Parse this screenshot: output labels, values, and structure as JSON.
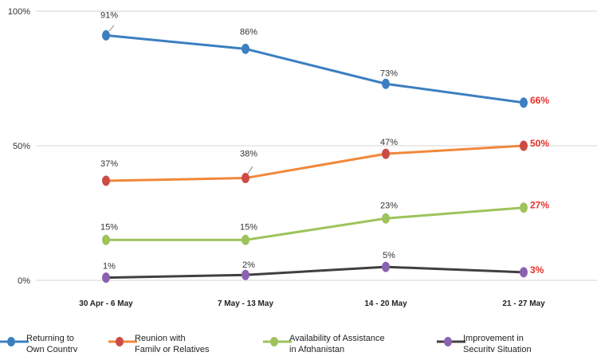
{
  "chart_data": {
    "type": "line",
    "categories": [
      "30 Apr - 6 May",
      "7 May - 13 May",
      "14 - 20 May",
      "21 - 27 May"
    ],
    "ylim": [
      0,
      100
    ],
    "yticks": [
      0,
      50,
      100
    ],
    "ytick_labels": [
      "0%",
      "50%",
      "100%"
    ],
    "grid": true,
    "legend_position": "bottom",
    "last_label_color": "#e8302a",
    "series": [
      {
        "name": "Returning to Own Country",
        "legend_lines": [
          "Returning to",
          "Own Country"
        ],
        "color": "#3c7fc1",
        "marker_color": "#3c7fc1",
        "values": [
          91,
          86,
          73,
          66
        ],
        "labels": [
          "91%",
          "86%",
          "73%",
          "66%"
        ]
      },
      {
        "name": "Reunion with Family or Relatives",
        "legend_lines": [
          "Reunion with",
          "Family or Relatives"
        ],
        "color": "#f0883a",
        "marker_color": "#cc4b45",
        "values": [
          37,
          38,
          47,
          50
        ],
        "labels": [
          "37%",
          "38%",
          "47%",
          "50%"
        ]
      },
      {
        "name": "Availability of Assistance in Afghanistan",
        "legend_lines": [
          "Availability of Assistance",
          "in Afghanistan"
        ],
        "color": "#9dc35a",
        "marker_color": "#9dc35a",
        "values": [
          15,
          15,
          23,
          27
        ],
        "labels": [
          "15%",
          "15%",
          "23%",
          "27%"
        ]
      },
      {
        "name": "Improvement in Security Situation",
        "legend_lines": [
          "Improvement in",
          "Security Situation"
        ],
        "color": "#404040",
        "marker_color": "#8a62b0",
        "values": [
          1,
          2,
          5,
          3
        ],
        "labels": [
          "1%",
          "2%",
          "5%",
          "3%"
        ]
      }
    ]
  }
}
